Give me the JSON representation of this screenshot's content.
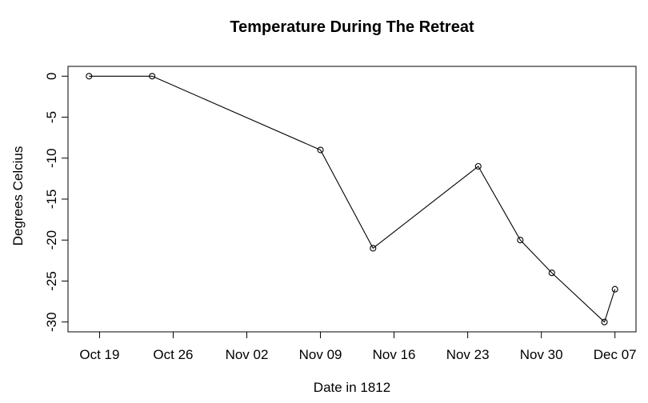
{
  "figure": {
    "background": "#ffffff",
    "foreground": "#000000"
  },
  "chart_data": {
    "type": "line",
    "title": "Temperature During The Retreat",
    "xlabel": "Date in 1812",
    "ylabel": "Degrees Celcius",
    "grid": false,
    "legend": "none",
    "marker": "open-circle",
    "line_color": "#000000",
    "series": [
      {
        "name": "temperature",
        "points": [
          {
            "date": "Oct 18",
            "day": 0,
            "temp_c": 0
          },
          {
            "date": "Oct 24",
            "day": 6,
            "temp_c": 0
          },
          {
            "date": "Nov 09",
            "day": 22,
            "temp_c": -9
          },
          {
            "date": "Nov 14",
            "day": 27,
            "temp_c": -21
          },
          {
            "date": "Nov 24",
            "day": 37,
            "temp_c": -11
          },
          {
            "date": "Nov 28",
            "day": 41,
            "temp_c": -20
          },
          {
            "date": "Dec 01",
            "day": 44,
            "temp_c": -24
          },
          {
            "date": "Dec 06",
            "day": 49,
            "temp_c": -30
          },
          {
            "date": "Dec 07",
            "day": 50,
            "temp_c": -26
          }
        ]
      }
    ],
    "x_axis": {
      "range_days": [
        -2,
        52
      ],
      "ticks": [
        {
          "label": "Oct 19",
          "day": 1
        },
        {
          "label": "Oct 26",
          "day": 8
        },
        {
          "label": "Nov 02",
          "day": 15
        },
        {
          "label": "Nov 09",
          "day": 22
        },
        {
          "label": "Nov 16",
          "day": 29
        },
        {
          "label": "Nov 23",
          "day": 36
        },
        {
          "label": "Nov 30",
          "day": 43
        },
        {
          "label": "Dec 07",
          "day": 50
        }
      ]
    },
    "y_axis": {
      "range": [
        -31.2,
        1.2
      ],
      "ticks": [
        0,
        -5,
        -10,
        -15,
        -20,
        -25,
        -30
      ]
    }
  }
}
